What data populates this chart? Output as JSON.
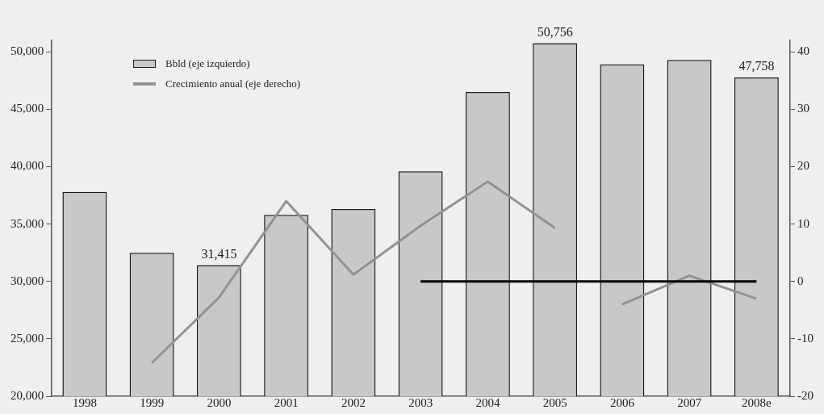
{
  "chart_data": {
    "type": "bar",
    "categories": [
      "1998",
      "1999",
      "2000",
      "2001",
      "2002",
      "2003",
      "2004",
      "2005",
      "2006",
      "2007",
      "2008e"
    ],
    "series": [
      {
        "name": "Bbld (eje izquierdo)",
        "color": "#c8c8ca",
        "values": [
          37800,
          32500,
          31415,
          35800,
          36300,
          39600,
          46500,
          50756,
          48900,
          49300,
          47758
        ],
        "value_labels": [
          null,
          null,
          "31,415",
          null,
          null,
          null,
          null,
          "50,756",
          null,
          null,
          "47,758"
        ]
      },
      {
        "name": "Crecimiento anual (eje derecho)",
        "type": "line",
        "axis": "y2",
        "color": "#939393",
        "values": [
          null,
          -14.2,
          -2.8,
          14,
          1.2,
          9.7,
          17.4,
          9.3,
          null,
          null,
          null
        ]
      },
      {
        "type": "line",
        "axis": "y2",
        "color": "#939393",
        "values": [
          null,
          null,
          null,
          null,
          null,
          null,
          null,
          null,
          -4,
          1,
          -3
        ]
      },
      {
        "type": "line",
        "axis": "y2",
        "color": "#000000",
        "values": [
          null,
          null,
          null,
          null,
          null,
          0,
          0,
          0,
          0,
          0,
          0
        ]
      }
    ],
    "ylim": [
      20000,
      51000
    ],
    "yticks": [
      {
        "value": 20000,
        "label": "20,000"
      },
      {
        "value": 25000,
        "label": "25,000"
      },
      {
        "value": 30000,
        "label": "30,000"
      },
      {
        "value": 35000,
        "label": "35,000"
      },
      {
        "value": 40000,
        "label": "40,000"
      },
      {
        "value": 45000,
        "label": "45,000"
      },
      {
        "value": 50000,
        "label": "50,000"
      }
    ],
    "y2lim": [
      -20,
      42
    ],
    "y2ticks": [
      -20,
      -10,
      0,
      10,
      20,
      30,
      40
    ],
    "legend": "top left",
    "grid": false,
    "marker": "none",
    "line_style": "solid"
  }
}
